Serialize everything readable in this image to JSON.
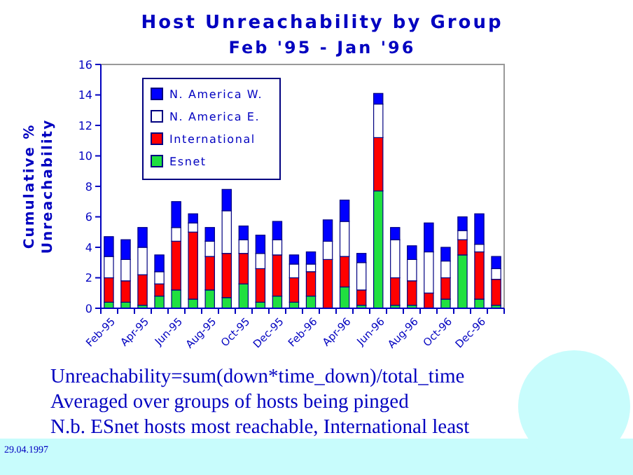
{
  "chart_data": {
    "type": "bar",
    "stacked": true,
    "title": "Host Unreachability by Group",
    "subtitle": "Feb '95 - Jan '96",
    "ylabel": "Cumulative %\nUnreachability",
    "categories": [
      "Feb-95",
      null,
      "Apr-95",
      null,
      "Jun-95",
      null,
      "Aug-95",
      null,
      "Oct-95",
      null,
      "Dec-95",
      null,
      "Feb-96",
      null,
      "Apr-96",
      null,
      "Jun-96",
      null,
      "Aug-96",
      null,
      "Oct-96",
      null,
      "Dec-96",
      null
    ],
    "series": [
      {
        "name": "Esnet",
        "color": "#20e040",
        "values": [
          0.4,
          0.4,
          0.2,
          0.8,
          1.2,
          0.6,
          1.2,
          0.7,
          1.6,
          0.4,
          0.8,
          0.4,
          0.8,
          0,
          1.4,
          0.2,
          7.7,
          0.2,
          0.2,
          0,
          0.6,
          3.5,
          0.6,
          0.2
        ]
      },
      {
        "name": "International",
        "color": "#ff0000",
        "values": [
          1.6,
          1.4,
          2.0,
          0.8,
          3.2,
          4.4,
          2.2,
          2.9,
          2.0,
          2.2,
          2.7,
          1.6,
          1.6,
          3.2,
          2.0,
          1.0,
          3.5,
          1.8,
          1.6,
          1.0,
          1.4,
          1.0,
          3.1,
          1.7
        ]
      },
      {
        "name": "N. America E.",
        "color": "#ffffff",
        "values": [
          1.4,
          1.4,
          1.8,
          0.8,
          0.9,
          0.6,
          1.0,
          2.8,
          0.9,
          1.0,
          1.0,
          0.9,
          0.5,
          1.2,
          2.3,
          1.8,
          2.2,
          2.5,
          1.4,
          2.7,
          1.1,
          0.6,
          0.5,
          0.7
        ]
      },
      {
        "name": "N. America W.",
        "color": "#0000ff",
        "values": [
          1.3,
          1.3,
          1.3,
          1.1,
          1.7,
          0.6,
          0.9,
          1.4,
          0.9,
          1.2,
          1.2,
          0.6,
          0.8,
          1.4,
          1.4,
          0.6,
          0.7,
          0.8,
          0.9,
          1.9,
          0.9,
          0.9,
          2.0,
          0.8
        ]
      }
    ],
    "ylim": [
      0,
      16
    ],
    "yticks": [
      0,
      2,
      4,
      6,
      8,
      10,
      12,
      14,
      16
    ],
    "grid": false,
    "legend": "top left",
    "annotations": [
      "Unreachability=sum(down*time_down)/total_time",
      "Averaged over groups of hosts being pinged",
      "N.b. ESnet hosts most reachable, International least",
      "29.04.1997"
    ]
  }
}
